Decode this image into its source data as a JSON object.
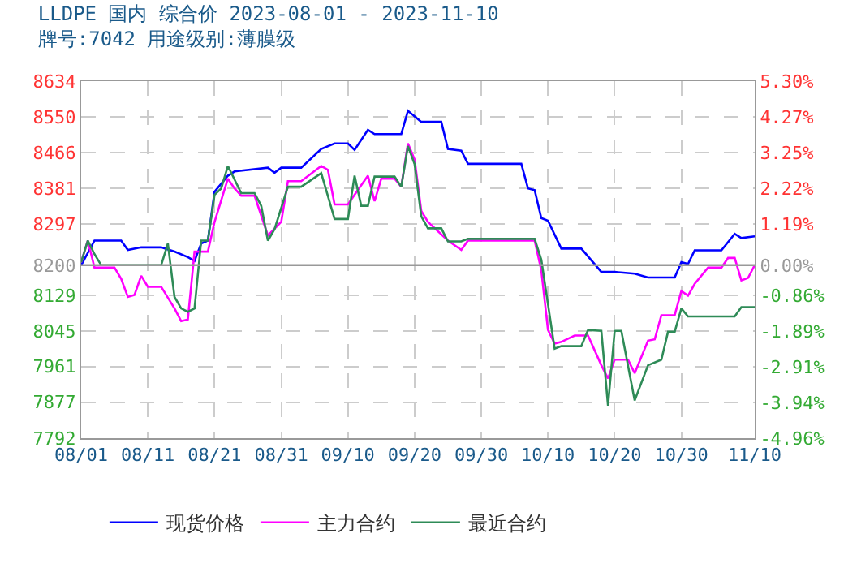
{
  "chart_data": {
    "type": "line",
    "title": "LLDPE 国内 综合价 2023-08-01 - 2023-11-10",
    "subtitle": "牌号:7042 用途级别:薄膜级",
    "xlim": [
      "2023-08-01",
      "2023-11-10"
    ],
    "xticks": [
      {
        "value": "2023-08-01",
        "label": "08/01"
      },
      {
        "value": "2023-08-11",
        "label": "08/11"
      },
      {
        "value": "2023-08-21",
        "label": "08/21"
      },
      {
        "value": "2023-08-31",
        "label": "08/31"
      },
      {
        "value": "2023-09-10",
        "label": "09/10"
      },
      {
        "value": "2023-09-20",
        "label": "09/20"
      },
      {
        "value": "2023-09-30",
        "label": "09/30"
      },
      {
        "value": "2023-10-10",
        "label": "10/10"
      },
      {
        "value": "2023-10-20",
        "label": "10/20"
      },
      {
        "value": "2023-10-30",
        "label": "10/30"
      },
      {
        "value": "2023-11-10",
        "label": "11/10"
      }
    ],
    "ylim": [
      7792,
      8634
    ],
    "yticks": [
      7792,
      7877,
      7961,
      8045,
      8129,
      8200,
      8297,
      8381,
      8466,
      8550,
      8634
    ],
    "y2lim": [
      -4.96,
      5.3
    ],
    "y2ticks": [
      {
        "value": -4.96,
        "label": "-4.96%"
      },
      {
        "value": -3.94,
        "label": "-3.94%"
      },
      {
        "value": -2.91,
        "label": "-2.91%"
      },
      {
        "value": -1.89,
        "label": "-1.89%"
      },
      {
        "value": -0.86,
        "label": "-0.86%"
      },
      {
        "value": 0,
        "label": "0.00%"
      },
      {
        "value": 1.19,
        "label": "1.19%"
      },
      {
        "value": 2.22,
        "label": "2.22%"
      },
      {
        "value": 3.25,
        "label": "3.25%"
      },
      {
        "value": 4.27,
        "label": "4.27%"
      },
      {
        "value": 5.3,
        "label": "5.30%"
      }
    ],
    "ref_lines": [
      {
        "axis": "y",
        "value": 8200,
        "color": "#999999"
      }
    ],
    "grid": true,
    "legend": "bottom",
    "series": [
      {
        "name": "现货价格",
        "color": "#0000ff",
        "x": [
          "2023-08-01",
          "2023-08-03",
          "2023-08-07",
          "2023-08-08",
          "2023-08-10",
          "2023-08-13",
          "2023-08-15",
          "2023-08-17",
          "2023-08-18",
          "2023-08-19",
          "2023-08-20",
          "2023-08-21",
          "2023-08-23",
          "2023-08-24",
          "2023-08-29",
          "2023-08-30",
          "2023-08-31",
          "2023-09-03",
          "2023-09-06",
          "2023-09-08",
          "2023-09-10",
          "2023-09-11",
          "2023-09-13",
          "2023-09-14",
          "2023-09-18",
          "2023-09-19",
          "2023-09-21",
          "2023-09-24",
          "2023-09-25",
          "2023-09-27",
          "2023-09-28",
          "2023-10-06",
          "2023-10-07",
          "2023-10-08",
          "2023-10-09",
          "2023-10-10",
          "2023-10-12",
          "2023-10-15",
          "2023-10-18",
          "2023-10-20",
          "2023-10-23",
          "2023-10-25",
          "2023-10-29",
          "2023-10-30",
          "2023-10-31",
          "2023-11-01",
          "2023-11-05",
          "2023-11-07",
          "2023-11-08",
          "2023-11-10"
        ],
        "values": [
          8200,
          8258,
          8258,
          8236,
          8242,
          8242,
          8232,
          8219,
          8210,
          8251,
          8258,
          8373,
          8411,
          8421,
          8430,
          8418,
          8430,
          8430,
          8474,
          8487,
          8487,
          8472,
          8519,
          8509,
          8509,
          8564,
          8538,
          8538,
          8474,
          8470,
          8439,
          8439,
          8381,
          8377,
          8311,
          8305,
          8239,
          8239,
          8184,
          8184,
          8180,
          8171,
          8171,
          8207,
          8203,
          8235,
          8235,
          8274,
          8264,
          8268
        ]
      },
      {
        "name": "主力合约",
        "color": "#ff00ff",
        "x": [
          "2023-08-01",
          "2023-08-02",
          "2023-08-03",
          "2023-08-06",
          "2023-08-07",
          "2023-08-08",
          "2023-08-09",
          "2023-08-10",
          "2023-08-11",
          "2023-08-13",
          "2023-08-15",
          "2023-08-16",
          "2023-08-17",
          "2023-08-18",
          "2023-08-20",
          "2023-08-21",
          "2023-08-23",
          "2023-08-24",
          "2023-08-25",
          "2023-08-27",
          "2023-08-29",
          "2023-08-31",
          "2023-09-01",
          "2023-09-03",
          "2023-09-06",
          "2023-09-07",
          "2023-09-08",
          "2023-09-10",
          "2023-09-11",
          "2023-09-13",
          "2023-09-14",
          "2023-09-15",
          "2023-09-17",
          "2023-09-18",
          "2023-09-19",
          "2023-09-20",
          "2023-09-21",
          "2023-09-22",
          "2023-09-25",
          "2023-09-27",
          "2023-09-28",
          "2023-10-08",
          "2023-10-09",
          "2023-10-10",
          "2023-10-11",
          "2023-10-12",
          "2023-10-14",
          "2023-10-16",
          "2023-10-18",
          "2023-10-19",
          "2023-10-20",
          "2023-10-22",
          "2023-10-23",
          "2023-10-25",
          "2023-10-26",
          "2023-10-27",
          "2023-10-29",
          "2023-10-30",
          "2023-10-31",
          "2023-11-01",
          "2023-11-03",
          "2023-11-05",
          "2023-11-06",
          "2023-11-07",
          "2023-11-08",
          "2023-11-09",
          "2023-11-10"
        ],
        "values": [
          8207,
          8258,
          8194,
          8194,
          8168,
          8125,
          8130,
          8175,
          8149,
          8149,
          8098,
          8068,
          8072,
          8232,
          8232,
          8302,
          8404,
          8381,
          8364,
          8364,
          8270,
          8302,
          8398,
          8398,
          8434,
          8425,
          8343,
          8343,
          8366,
          8411,
          8351,
          8404,
          8404,
          8385,
          8487,
          8449,
          8328,
          8302,
          8258,
          8236,
          8258,
          8258,
          8188,
          8047,
          8015,
          8019,
          8034,
          8034,
          7964,
          7933,
          7977,
          7977,
          7945,
          8022,
          8025,
          8082,
          8082,
          8139,
          8128,
          8156,
          8194,
          8194,
          8217,
          8217,
          8164,
          8170,
          8200
        ]
      },
      {
        "name": "最近合约",
        "color": "#2e8b57",
        "x": [
          "2023-08-01",
          "2023-08-02",
          "2023-08-03",
          "2023-08-04",
          "2023-08-13",
          "2023-08-14",
          "2023-08-15",
          "2023-08-16",
          "2023-08-17",
          "2023-08-18",
          "2023-08-19",
          "2023-08-20",
          "2023-08-21",
          "2023-08-22",
          "2023-08-23",
          "2023-08-25",
          "2023-08-27",
          "2023-08-28",
          "2023-08-29",
          "2023-08-30",
          "2023-09-01",
          "2023-09-03",
          "2023-09-06",
          "2023-09-08",
          "2023-09-10",
          "2023-09-11",
          "2023-09-12",
          "2023-09-13",
          "2023-09-14",
          "2023-09-17",
          "2023-09-18",
          "2023-09-19",
          "2023-09-20",
          "2023-09-21",
          "2023-09-22",
          "2023-09-24",
          "2023-09-25",
          "2023-09-27",
          "2023-09-28",
          "2023-10-08",
          "2023-10-09",
          "2023-10-11",
          "2023-10-12",
          "2023-10-15",
          "2023-10-16",
          "2023-10-18",
          "2023-10-19",
          "2023-10-20",
          "2023-10-21",
          "2023-10-23",
          "2023-10-25",
          "2023-10-27",
          "2023-10-28",
          "2023-10-29",
          "2023-10-30",
          "2023-10-31",
          "2023-11-07",
          "2023-11-08",
          "2023-11-10"
        ],
        "values": [
          8207,
          8258,
          8226,
          8200,
          8200,
          8251,
          8125,
          8098,
          8090,
          8098,
          8258,
          8258,
          8366,
          8381,
          8434,
          8370,
          8370,
          8340,
          8258,
          8285,
          8385,
          8385,
          8417,
          8309,
          8309,
          8411,
          8340,
          8340,
          8409,
          8409,
          8385,
          8481,
          8438,
          8315,
          8287,
          8287,
          8256,
          8256,
          8262,
          8262,
          8213,
          8003,
          8009,
          8009,
          8047,
          8045,
          7869,
          8045,
          8045,
          7881,
          7964,
          7977,
          8043,
          8043,
          8098,
          8079,
          8079,
          8101,
          8101
        ]
      }
    ]
  }
}
